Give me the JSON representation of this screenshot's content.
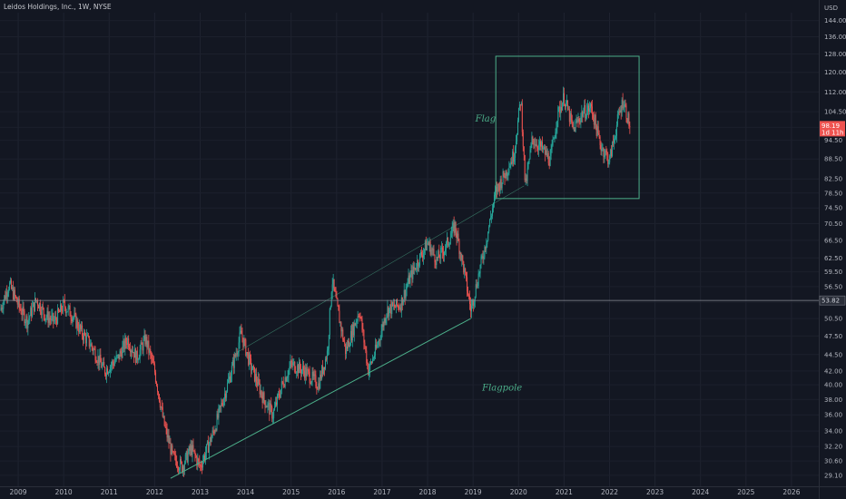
{
  "header": {
    "title": "Leidos Holdings, Inc., 1W, NYSE"
  },
  "colors": {
    "background": "#131722",
    "up": "#26a69a",
    "down": "#ef5350",
    "annotation": "#4caf8a",
    "hline": "#8a8d96",
    "price_tag_bg": "#ef5350",
    "hline_tag_bg": "#2a2e39"
  },
  "chart_data": {
    "type": "candlestick",
    "title": "Leidos Holdings, Inc., 1W, NYSE",
    "currency": "USD",
    "y_scale": "log",
    "ylim": [
      28.0,
      148.0
    ],
    "xlim": [
      2008.6,
      2026.6
    ],
    "y_ticks": [
      29.1,
      30.6,
      32.2,
      34.0,
      36.0,
      38.0,
      40.0,
      42.0,
      44.5,
      47.5,
      50.5,
      53.5,
      56.5,
      59.5,
      62.5,
      66.5,
      70.5,
      74.5,
      78.5,
      82.5,
      88.5,
      94.5,
      98.9,
      104.5,
      112.0,
      120.0,
      128.0,
      136.0,
      144.0
    ],
    "y_tick_labels": [
      "29.10",
      "30.60",
      "32.20",
      "34.00",
      "36.00",
      "38.00",
      "40.00",
      "42.00",
      "44.50",
      "47.50",
      "50.50",
      "53.50",
      "56.50",
      "59.50",
      "62.50",
      "66.50",
      "70.50",
      "74.50",
      "78.50",
      "82.50",
      "88.50",
      "94.50",
      "98.90",
      "104.50",
      "112.00",
      "120.00",
      "128.00",
      "136.00",
      "144.00"
    ],
    "x_ticks": [
      2009,
      2010,
      2011,
      2012,
      2013,
      2014,
      2015,
      2016,
      2017,
      2018,
      2019,
      2020,
      2021,
      2022,
      2023,
      2024,
      2025,
      2026
    ],
    "x_tick_labels": [
      "2009",
      "2010",
      "2011",
      "2012",
      "2013",
      "2014",
      "2015",
      "2016",
      "2017",
      "2018",
      "2019",
      "2020",
      "2021",
      "2022",
      "2023",
      "2024",
      "2025",
      "2026"
    ],
    "price_path": [
      [
        2008.6,
        52
      ],
      [
        2008.8,
        57
      ],
      [
        2009.0,
        53
      ],
      [
        2009.2,
        50
      ],
      [
        2009.4,
        54
      ],
      [
        2009.6,
        51
      ],
      [
        2009.8,
        50
      ],
      [
        2010.0,
        53
      ],
      [
        2010.2,
        51
      ],
      [
        2010.4,
        48
      ],
      [
        2010.6,
        46
      ],
      [
        2010.9,
        42
      ],
      [
        2011.2,
        44
      ],
      [
        2011.4,
        47
      ],
      [
        2011.6,
        44
      ],
      [
        2011.8,
        47
      ],
      [
        2012.0,
        42
      ],
      [
        2012.2,
        35
      ],
      [
        2012.4,
        31
      ],
      [
        2012.6,
        30
      ],
      [
        2012.8,
        32
      ],
      [
        2013.0,
        30
      ],
      [
        2013.3,
        34
      ],
      [
        2013.6,
        40
      ],
      [
        2013.8,
        45
      ],
      [
        2013.9,
        48
      ],
      [
        2014.1,
        43
      ],
      [
        2014.4,
        38
      ],
      [
        2014.6,
        36
      ],
      [
        2014.8,
        40
      ],
      [
        2015.0,
        43
      ],
      [
        2015.3,
        42
      ],
      [
        2015.6,
        40
      ],
      [
        2015.8,
        45
      ],
      [
        2015.9,
        58
      ],
      [
        2016.0,
        53
      ],
      [
        2016.2,
        45
      ],
      [
        2016.5,
        52
      ],
      [
        2016.7,
        42
      ],
      [
        2016.9,
        46
      ],
      [
        2017.1,
        52
      ],
      [
        2017.4,
        53
      ],
      [
        2017.6,
        58
      ],
      [
        2017.8,
        62
      ],
      [
        2018.0,
        66
      ],
      [
        2018.2,
        62
      ],
      [
        2018.4,
        65
      ],
      [
        2018.6,
        70
      ],
      [
        2018.8,
        60
      ],
      [
        2018.95,
        52
      ],
      [
        2019.1,
        58
      ],
      [
        2019.3,
        67
      ],
      [
        2019.5,
        79
      ],
      [
        2019.7,
        84
      ],
      [
        2019.9,
        90
      ],
      [
        2020.05,
        110
      ],
      [
        2020.15,
        80
      ],
      [
        2020.3,
        95
      ],
      [
        2020.5,
        92
      ],
      [
        2020.7,
        88
      ],
      [
        2020.85,
        103
      ],
      [
        2021.0,
        110
      ],
      [
        2021.2,
        98
      ],
      [
        2021.4,
        104
      ],
      [
        2021.6,
        106
      ],
      [
        2021.8,
        93
      ],
      [
        2022.0,
        88
      ],
      [
        2022.2,
        103
      ],
      [
        2022.3,
        109
      ],
      [
        2022.45,
        98.9
      ]
    ],
    "last_price": "98.19",
    "last_price_sub": "1d 11h",
    "horizontal_line": {
      "y": 53.82,
      "label": "53.82"
    },
    "annotations": [
      {
        "label": "Flag",
        "x": 2019.05,
        "y": 101
      },
      {
        "label": "Flagpole",
        "x": 2019.2,
        "y": 39.2
      }
    ],
    "drawings": {
      "flagpole_lower": {
        "from": [
          2012.35,
          28.8
        ],
        "to": [
          2018.95,
          50.5
        ]
      },
      "flagpole_upper": {
        "from": [
          2013.85,
          45.0
        ],
        "to": [
          2020.12,
          80.5
        ]
      },
      "flag_box": {
        "x0": 2019.5,
        "x1": 2022.65,
        "y0": 77.0,
        "y1": 127.0
      }
    }
  }
}
